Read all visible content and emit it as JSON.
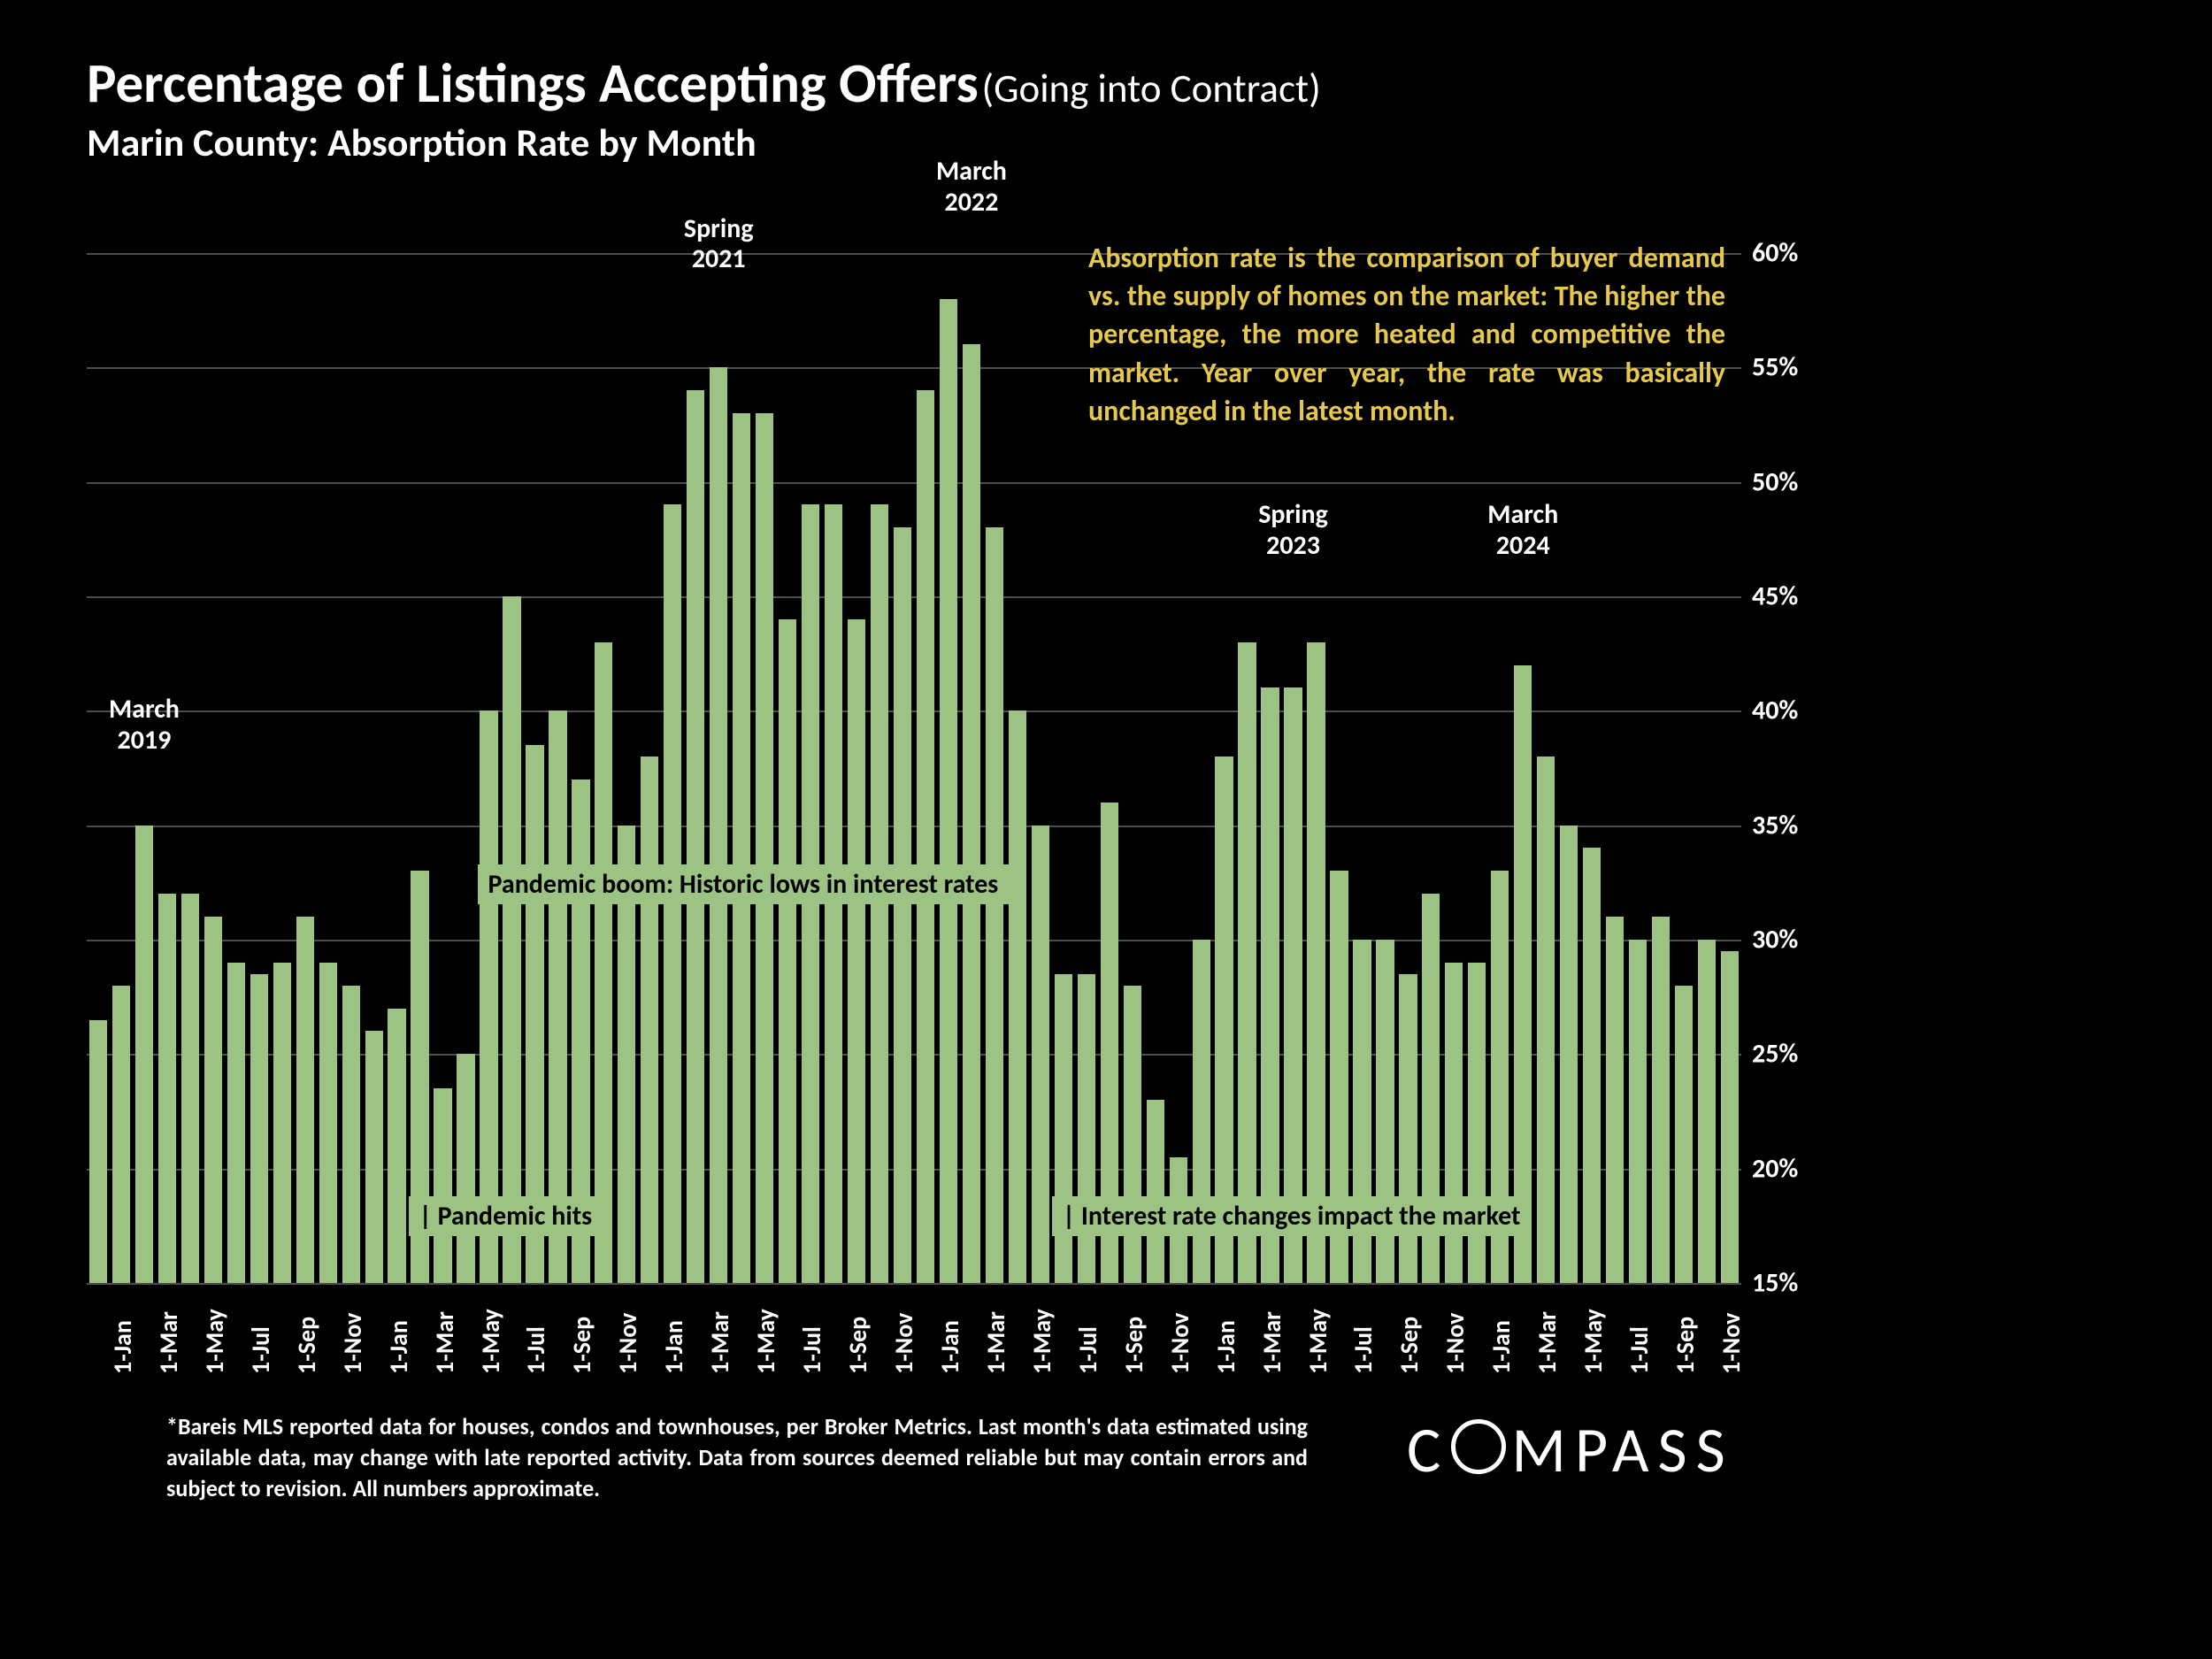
{
  "title": {
    "main": "Percentage of Listings Accepting Offers",
    "sub": "(Going into Contract)",
    "line2": "Marin County:  Absorption Rate by Month"
  },
  "chart": {
    "type": "bar",
    "ymin": 15,
    "ymax": 61,
    "yticks": [
      15,
      20,
      25,
      30,
      35,
      40,
      45,
      50,
      55,
      60
    ],
    "ytick_labels": [
      "15%",
      "20%",
      "25%",
      "30%",
      "35%",
      "40%",
      "45%",
      "50%",
      "55%",
      "60%"
    ],
    "gridline_color": "#4d4d4d",
    "bar_color": "#9cc284",
    "background_color": "#000000",
    "bar_gap_ratio": 0.22,
    "xlabels": [
      "1-Jan",
      "",
      "1-Mar",
      "",
      "1-May",
      "",
      "1-Jul",
      "",
      "1-Sep",
      "",
      "1-Nov",
      "",
      "1-Jan",
      "",
      "1-Mar",
      "",
      "1-May",
      "",
      "1-Jul",
      "",
      "1-Sep",
      "",
      "1-Nov",
      "",
      "1-Jan",
      "",
      "1-Mar",
      "",
      "1-May",
      "",
      "1-Jul",
      "",
      "1-Sep",
      "",
      "1-Nov",
      "",
      "1-Jan",
      "",
      "1-Mar",
      "",
      "1-May",
      "",
      "1-Jul",
      "",
      "1-Sep",
      "",
      "1-Nov",
      "",
      "1-Jan",
      "",
      "1-Mar",
      "",
      "1-May",
      "",
      "1-Jul",
      "",
      "1-Sep",
      "",
      "1-Nov",
      "",
      "1-Jan",
      "",
      "1-Mar",
      "",
      "1-May",
      "",
      "1-Jul",
      "",
      "1-Sep",
      "",
      "1-Nov",
      ""
    ],
    "values": [
      26.5,
      28,
      35,
      32,
      32,
      31,
      29,
      28.5,
      29,
      31,
      29,
      28,
      26,
      27,
      33,
      23.5,
      25,
      40,
      45,
      38.5,
      40,
      37,
      43,
      35,
      38,
      49,
      54,
      55,
      53,
      53,
      44,
      49,
      49,
      44,
      49,
      48,
      54,
      58,
      56,
      48,
      40,
      35,
      28.5,
      28.5,
      36,
      28,
      23,
      20.5,
      30,
      38,
      43,
      41,
      41,
      43,
      33,
      30,
      30,
      28.5,
      32,
      29,
      29,
      33,
      42,
      38,
      35,
      34,
      31,
      30,
      31,
      28,
      30,
      29.5
    ]
  },
  "callouts": [
    {
      "text": "March\n2019",
      "x_index": 2,
      "y_val": 38
    },
    {
      "text": "Spring\n2021",
      "x_index": 27,
      "y_val": 59
    },
    {
      "text": "March\n2022",
      "x_index": 38,
      "y_val": 61.5
    },
    {
      "text": "Spring\n2023",
      "x_index": 52,
      "y_val": 46.5
    },
    {
      "text": "March\n2024",
      "x_index": 62,
      "y_val": 46.5
    }
  ],
  "overlays": [
    {
      "text": "Pandemic boom: Historic lows in interest rates",
      "x_index": 17,
      "y_val": 32.5,
      "align": "left"
    },
    {
      "text": "| Pandemic hits",
      "x_index": 14,
      "y_val": 18,
      "align": "left"
    },
    {
      "text": "| Interest rate changes impact the market",
      "x_index": 42,
      "y_val": 18,
      "align": "left"
    }
  ],
  "description": "Absorption rate is the comparison of buyer demand vs. the supply of homes on the market: The higher the percentage, the more heated and competitive the market. Year over year, the rate was basically unchanged in the latest month.",
  "footnote": "*Bareis MLS reported data for houses, condos and townhouses, per Broker Metrics. Last month's data estimated using available data, may change with late reported activity. Data from sources deemed reliable but may contain errors and subject to revision. All numbers approximate.",
  "logo_text": "COMPASS",
  "colors": {
    "text": "#ffffff",
    "accent": "#e6c84a",
    "bar": "#9cc284",
    "grid": "#4d4d4d",
    "bg": "#000000"
  }
}
